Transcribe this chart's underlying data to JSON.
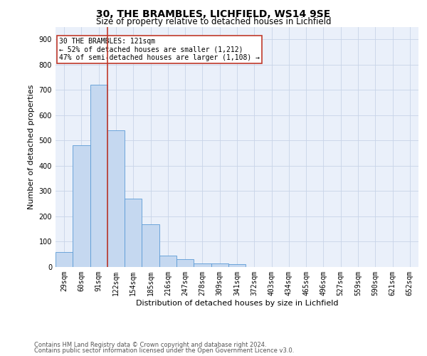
{
  "title1": "30, THE BRAMBLES, LICHFIELD, WS14 9SE",
  "title2": "Size of property relative to detached houses in Lichfield",
  "xlabel": "Distribution of detached houses by size in Lichfield",
  "ylabel": "Number of detached properties",
  "bar_labels": [
    "29sqm",
    "60sqm",
    "91sqm",
    "122sqm",
    "154sqm",
    "185sqm",
    "216sqm",
    "247sqm",
    "278sqm",
    "309sqm",
    "341sqm",
    "372sqm",
    "403sqm",
    "434sqm",
    "465sqm",
    "496sqm",
    "527sqm",
    "559sqm",
    "590sqm",
    "621sqm",
    "652sqm"
  ],
  "bar_values": [
    60,
    480,
    720,
    540,
    270,
    170,
    45,
    30,
    15,
    15,
    10,
    0,
    0,
    0,
    0,
    0,
    0,
    0,
    0,
    0,
    0
  ],
  "bar_color": "#c5d8f0",
  "bar_edge_color": "#5b9bd5",
  "vline_color": "#c0392b",
  "annotation_text": "30 THE BRAMBLES: 121sqm\n← 52% of detached houses are smaller (1,212)\n47% of semi-detached houses are larger (1,108) →",
  "annotation_box_color": "#c0392b",
  "ylim": [
    0,
    950
  ],
  "yticks": [
    0,
    100,
    200,
    300,
    400,
    500,
    600,
    700,
    800,
    900
  ],
  "footer1": "Contains HM Land Registry data © Crown copyright and database right 2024.",
  "footer2": "Contains public sector information licensed under the Open Government Licence v3.0.",
  "bg_color": "#ffffff",
  "plot_bg_color": "#eaf0fa",
  "grid_color": "#c8d4e8",
  "title1_fontsize": 10,
  "title2_fontsize": 8.5,
  "ylabel_fontsize": 8,
  "xlabel_fontsize": 8,
  "tick_fontsize": 7,
  "ann_fontsize": 7,
  "footer_fontsize": 6
}
